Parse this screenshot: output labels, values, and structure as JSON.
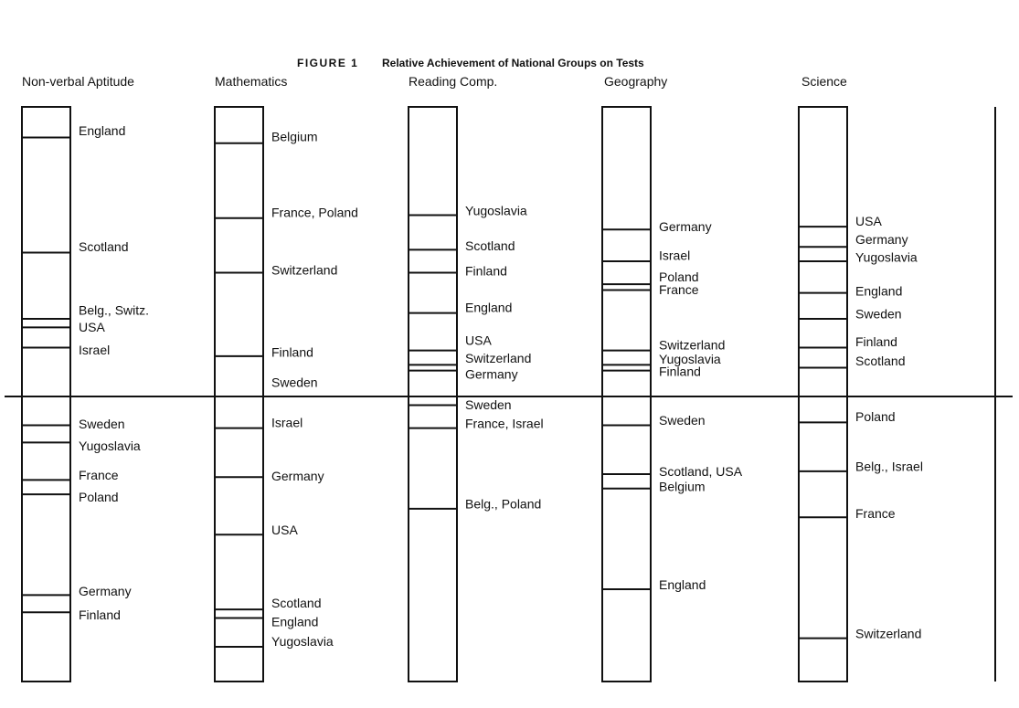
{
  "chart_data": {
    "type": "diagram-scale",
    "title_prefix": "FIGURE 1",
    "title": "Relative Achievement of National Groups on Tests",
    "note": "levels are relative positions; 0 = horizontal reference line, +1 top, -1 bottom",
    "panels": [
      {
        "header": "Non-verbal Aptitude",
        "items": [
          {
            "label": "England",
            "level": 0.9
          },
          {
            "label": "Scotland",
            "level": 0.5
          },
          {
            "label": "Belg., Switz.",
            "level": 0.27
          },
          {
            "label": "USA",
            "level": 0.24
          },
          {
            "label": "Israel",
            "level": 0.17
          },
          {
            "label": "Sweden",
            "level": -0.1
          },
          {
            "label": "Yugoslavia",
            "level": -0.16
          },
          {
            "label": "France",
            "level": -0.29
          },
          {
            "label": "Poland",
            "level": -0.34
          },
          {
            "label": "Germany",
            "level": -0.69
          },
          {
            "label": "Finland",
            "level": -0.75
          }
        ]
      },
      {
        "header": "Mathematics",
        "items": [
          {
            "label": "Belgium",
            "level": 0.88
          },
          {
            "label": "France, Poland",
            "level": 0.62
          },
          {
            "label": "Switzerland",
            "level": 0.43
          },
          {
            "label": "Finland",
            "level": 0.14
          },
          {
            "label": "Sweden",
            "level": 0.0
          },
          {
            "label": "Israel",
            "level": -0.11
          },
          {
            "label": "Germany",
            "level": -0.28
          },
          {
            "label": "USA",
            "level": -0.48
          },
          {
            "label": "Scotland",
            "level": -0.74
          },
          {
            "label": "England",
            "level": -0.77
          },
          {
            "label": "Yugoslavia",
            "level": -0.87
          }
        ]
      },
      {
        "header": "Reading Comp.",
        "items": [
          {
            "label": "Yugoslavia",
            "level": 0.63
          },
          {
            "label": "Scotland",
            "level": 0.51
          },
          {
            "label": "Finland",
            "level": 0.43
          },
          {
            "label": "England",
            "level": 0.29
          },
          {
            "label": "USA",
            "level": 0.16
          },
          {
            "label": "Switzerland",
            "level": 0.11
          },
          {
            "label": "Germany",
            "level": 0.09
          },
          {
            "label": "Sweden",
            "level": -0.03
          },
          {
            "label": "France, Israel",
            "level": -0.11
          },
          {
            "label": "Belg., Poland",
            "level": -0.39
          }
        ]
      },
      {
        "header": "Geography",
        "items": [
          {
            "label": "Germany",
            "level": 0.58
          },
          {
            "label": "Israel",
            "level": 0.47
          },
          {
            "label": "Poland",
            "level": 0.39
          },
          {
            "label": "France",
            "level": 0.37
          },
          {
            "label": "Switzerland",
            "level": 0.16
          },
          {
            "label": "Yugoslavia",
            "level": 0.11
          },
          {
            "label": "Finland",
            "level": 0.09
          },
          {
            "label": "Sweden",
            "level": -0.1
          },
          {
            "label": "Scotland, USA",
            "level": -0.27
          },
          {
            "label": "Belgium",
            "level": -0.32
          },
          {
            "label": "England",
            "level": -0.67
          }
        ]
      },
      {
        "header": "Science",
        "items": [
          {
            "label": "USA",
            "level": 0.59
          },
          {
            "label": "Germany",
            "level": 0.52
          },
          {
            "label": "Yugoslavia",
            "level": 0.47
          },
          {
            "label": "England",
            "level": 0.36
          },
          {
            "label": "Sweden",
            "level": 0.27
          },
          {
            "label": "Finland",
            "level": 0.17
          },
          {
            "label": "Scotland",
            "level": 0.1
          },
          {
            "label": "Poland",
            "level": -0.09
          },
          {
            "label": "Belg., Israel",
            "level": -0.26
          },
          {
            "label": "France",
            "level": -0.42
          },
          {
            "label": "Switzerland",
            "level": -0.84
          }
        ]
      }
    ]
  }
}
